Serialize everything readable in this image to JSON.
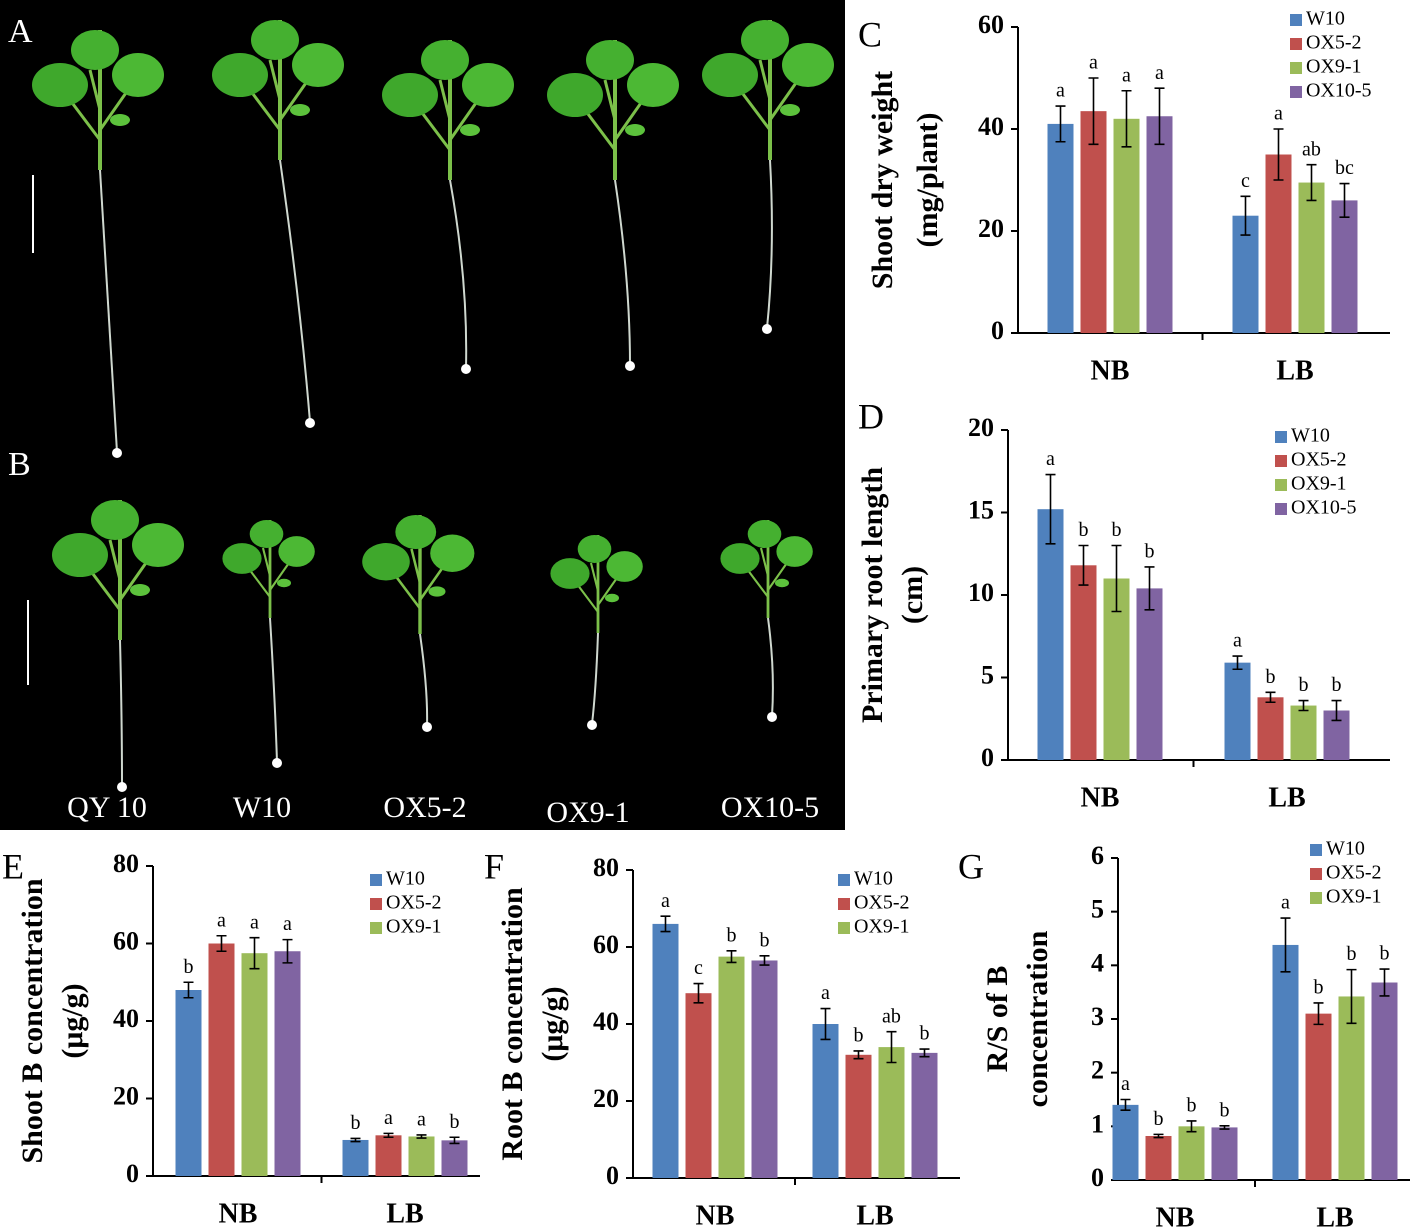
{
  "photo": {
    "panels": [
      "A",
      "B"
    ],
    "labels": [
      "QY 10",
      "W10",
      "OX5-2",
      "OX9-1",
      "OX10-5"
    ]
  },
  "chart_data": [
    {
      "type": "bar",
      "panel": "C",
      "ylabel": [
        "Shoot dry weight",
        "(mg/plant)"
      ],
      "categories": [
        "NB",
        "LB"
      ],
      "ylim": [
        0,
        60
      ],
      "yticks": [
        0,
        20,
        40,
        60
      ],
      "series": [
        {
          "name": "W10",
          "color": "#4f81bd",
          "values": [
            41,
            23
          ],
          "errors": [
            3.5,
            3.8
          ],
          "letters": [
            "a",
            "c"
          ]
        },
        {
          "name": "OX5-2",
          "color": "#c0504d",
          "values": [
            43.5,
            35
          ],
          "errors": [
            6.5,
            5
          ],
          "letters": [
            "a",
            "a"
          ]
        },
        {
          "name": "OX9-1",
          "color": "#9bbb59",
          "values": [
            42,
            29.5
          ],
          "errors": [
            5.5,
            3.5
          ],
          "letters": [
            "a",
            "ab"
          ]
        },
        {
          "name": "OX10-5",
          "color": "#8064a2",
          "values": [
            42.5,
            26
          ],
          "errors": [
            5.5,
            3.3
          ],
          "letters": [
            "a",
            "bc"
          ]
        }
      ]
    },
    {
      "type": "bar",
      "panel": "D",
      "ylabel": [
        "Primary root length",
        "(cm)"
      ],
      "categories": [
        "NB",
        "LB"
      ],
      "ylim": [
        0,
        20
      ],
      "yticks": [
        0,
        5,
        10,
        15,
        20
      ],
      "series": [
        {
          "name": "W10",
          "color": "#4f81bd",
          "values": [
            15.2,
            5.9
          ],
          "errors": [
            2.1,
            0.4
          ],
          "letters": [
            "a",
            "a"
          ]
        },
        {
          "name": "OX5-2",
          "color": "#c0504d",
          "values": [
            11.8,
            3.8
          ],
          "errors": [
            1.2,
            0.3
          ],
          "letters": [
            "b",
            "b"
          ]
        },
        {
          "name": "OX9-1",
          "color": "#9bbb59",
          "values": [
            11,
            3.3
          ],
          "errors": [
            2,
            0.3
          ],
          "letters": [
            "b",
            "b"
          ]
        },
        {
          "name": "OX10-5",
          "color": "#8064a2",
          "values": [
            10.4,
            3
          ],
          "errors": [
            1.3,
            0.6
          ],
          "letters": [
            "b",
            "b"
          ]
        }
      ]
    },
    {
      "type": "bar",
      "panel": "E",
      "ylabel": [
        "Shoot B concentration",
        "(μg/g)"
      ],
      "categories": [
        "NB",
        "LB"
      ],
      "ylim": [
        0,
        80
      ],
      "yticks": [
        0,
        20,
        40,
        60,
        80
      ],
      "series": [
        {
          "name": "W10",
          "color": "#4f81bd",
          "values": [
            48,
            9.3
          ],
          "errors": [
            2,
            0.4
          ],
          "letters": [
            "b",
            "b"
          ]
        },
        {
          "name": "OX5-2",
          "color": "#c0504d",
          "values": [
            60,
            10.5
          ],
          "errors": [
            2,
            0.5
          ],
          "letters": [
            "a",
            "a"
          ]
        },
        {
          "name": "OX9-1",
          "color": "#9bbb59",
          "values": [
            57.5,
            10.2
          ],
          "errors": [
            4,
            0.4
          ],
          "letters": [
            "a",
            "a"
          ]
        },
        {
          "name": null,
          "color": "#8064a2",
          "values": [
            58,
            9.2
          ],
          "errors": [
            3,
            0.8
          ],
          "letters": [
            "a",
            "b"
          ]
        }
      ]
    },
    {
      "type": "bar",
      "panel": "F",
      "ylabel": [
        "Root B concentration",
        "(μg/g)"
      ],
      "categories": [
        "NB",
        "LB"
      ],
      "ylim": [
        0,
        80
      ],
      "yticks": [
        0,
        20,
        40,
        60,
        80
      ],
      "series": [
        {
          "name": "W10",
          "color": "#4f81bd",
          "values": [
            66,
            40
          ],
          "errors": [
            2,
            4
          ],
          "letters": [
            "a",
            "a"
          ]
        },
        {
          "name": "OX5-2",
          "color": "#c0504d",
          "values": [
            48,
            32
          ],
          "errors": [
            2.5,
            1
          ],
          "letters": [
            "c",
            "b"
          ]
        },
        {
          "name": "OX9-1",
          "color": "#9bbb59",
          "values": [
            57.5,
            34
          ],
          "errors": [
            1.5,
            4
          ],
          "letters": [
            "b",
            "ab"
          ]
        },
        {
          "name": null,
          "color": "#8064a2",
          "values": [
            56.5,
            32.5
          ],
          "errors": [
            1.2,
            1
          ],
          "letters": [
            "b",
            "b"
          ]
        }
      ]
    },
    {
      "type": "bar",
      "panel": "G",
      "ylabel": [
        "R/S of B",
        "concentration"
      ],
      "categories": [
        "NB",
        "LB"
      ],
      "ylim": [
        0,
        6
      ],
      "yticks": [
        0,
        1,
        2,
        3,
        4,
        5,
        6
      ],
      "series": [
        {
          "name": "W10",
          "color": "#4f81bd",
          "values": [
            1.4,
            4.38
          ],
          "errors": [
            0.1,
            0.5
          ],
          "letters": [
            "a",
            "a"
          ]
        },
        {
          "name": "OX5-2",
          "color": "#c0504d",
          "values": [
            0.82,
            3.1
          ],
          "errors": [
            0.03,
            0.2
          ],
          "letters": [
            "b",
            "b"
          ]
        },
        {
          "name": "OX9-1",
          "color": "#9bbb59",
          "values": [
            1.0,
            3.42
          ],
          "errors": [
            0.1,
            0.5
          ],
          "letters": [
            "b",
            "b"
          ]
        },
        {
          "name": null,
          "color": "#8064a2",
          "values": [
            0.98,
            3.68
          ],
          "errors": [
            0.03,
            0.25
          ],
          "letters": [
            "b",
            "b"
          ]
        }
      ]
    }
  ]
}
